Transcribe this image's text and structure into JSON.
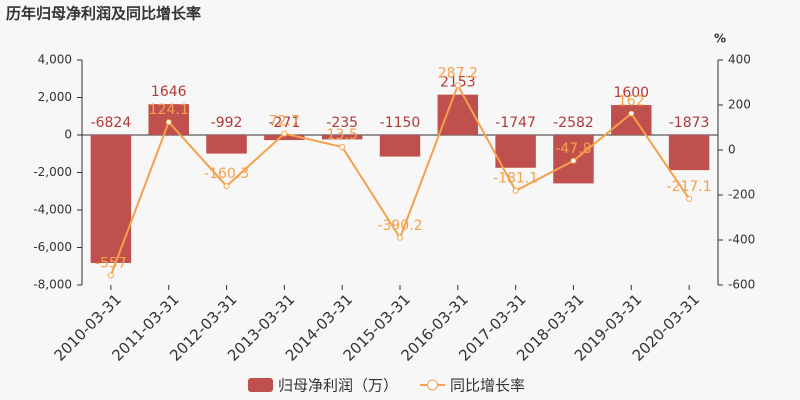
{
  "chart_data": {
    "type": "bar",
    "title": "历年归母净利润及同比增长率",
    "y2_unit": "%",
    "categories": [
      "2010-03-31",
      "2011-03-31",
      "2012-03-31",
      "2013-03-31",
      "2014-03-31",
      "2015-03-31",
      "2016-03-31",
      "2017-03-31",
      "2018-03-31",
      "2019-03-31",
      "2020-03-31"
    ],
    "series": [
      {
        "name": "归母净利润（万）",
        "type": "bar",
        "color": "#c0504d",
        "label_color": "#b03a3a",
        "values": [
          -6824,
          1646,
          -992,
          -271,
          -235,
          -1150,
          2153,
          -1747,
          -2582,
          1600,
          -1873
        ]
      },
      {
        "name": "同比增长率",
        "type": "line",
        "axis": "y2",
        "color": "#f5a04a",
        "values": [
          -557,
          124.1,
          -160.3,
          72.7,
          13.5,
          -390.2,
          287.2,
          -181.1,
          -47.8,
          162,
          -217.1
        ]
      }
    ],
    "ylim": [
      -8000,
      4000
    ],
    "yticks": [
      {
        "value": -8000,
        "label": "-8,000"
      },
      {
        "value": -6000,
        "label": "-6,000"
      },
      {
        "value": -4000,
        "label": "-4,000"
      },
      {
        "value": -2000,
        "label": "-2,000"
      },
      0,
      {
        "value": 2000,
        "label": "2,000"
      },
      {
        "value": 4000,
        "label": "4,000"
      }
    ],
    "y2lim": [
      -600,
      400
    ],
    "y2ticks": [
      -600,
      -400,
      -200,
      0,
      200,
      400
    ]
  }
}
